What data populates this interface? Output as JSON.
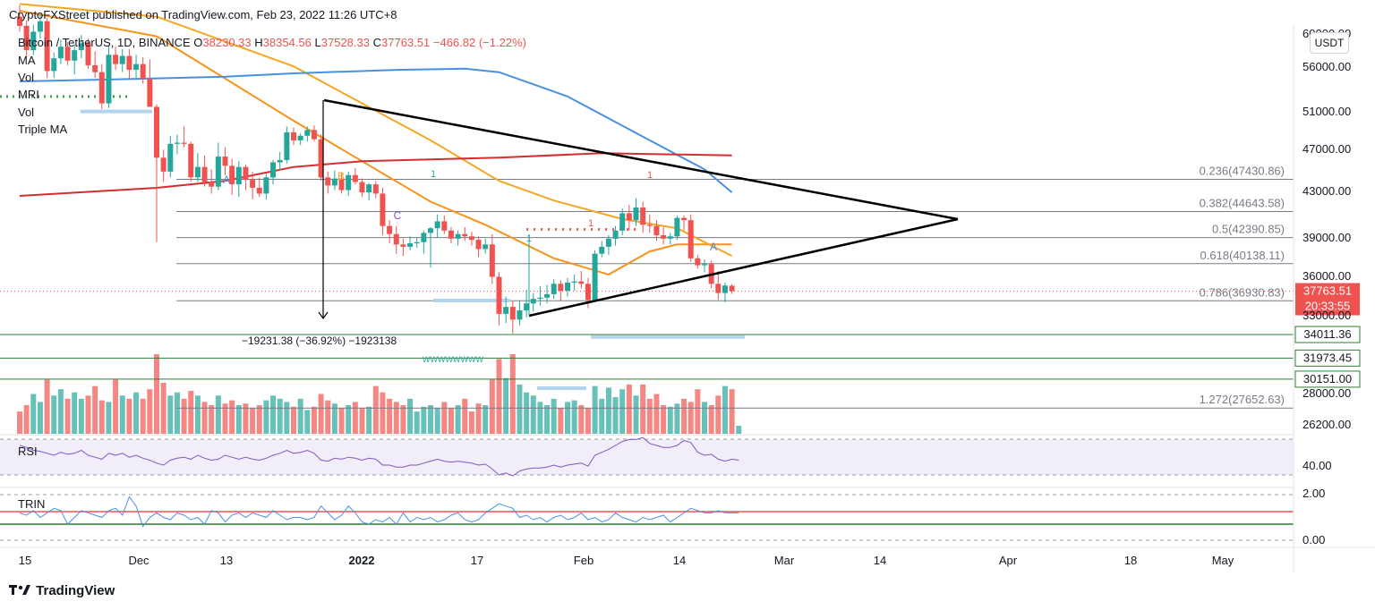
{
  "header": {
    "publisher": "CryptoFXStreet published on TradingView.com, Feb 23, 2022 11:26 UTC+8"
  },
  "symbol_line": {
    "symbol": "Bitcoin / TetherUS, 1D, BINANCE",
    "o_label": "O",
    "o_value": "38230.33",
    "h_label": "H",
    "h_value": "38354.56",
    "l_label": "L",
    "l_value": "37528.33",
    "c_label": "C",
    "c_value": "37763.51",
    "change": "−466.82 (−1.22%)"
  },
  "indicator_legend": [
    "MA",
    "Vol",
    "MRI",
    "Vol",
    "Triple MA"
  ],
  "quote_badge": "USDT",
  "price_axis": {
    "labels": [
      "60000.00",
      "56000.00",
      "51000.00",
      "47000.00",
      "43000.00",
      "39000.00",
      "36000.00",
      "33000.00",
      "28000.00",
      "26200.00"
    ]
  },
  "price_tags": {
    "last_price": "37763.51",
    "countdown": "20:33:55",
    "green_levels": [
      "34011.36",
      "31973.45",
      "30151.00"
    ]
  },
  "fib_levels": [
    {
      "label": "0.236(47430.86)"
    },
    {
      "label": "0.382(44643.58)"
    },
    {
      "label": "0.5(42390.85)"
    },
    {
      "label": "0.618(40138.11)"
    },
    {
      "label": "0.786(36930.83)"
    },
    {
      "label": "1.272(27652.63)"
    }
  ],
  "measure_label": "−19231.38 (−36.92%) −1923138",
  "wave_marks": [
    "A",
    "B",
    "C",
    "A"
  ],
  "td_marks": [
    "1",
    "1",
    "1",
    "1"
  ],
  "pattern_mark": "WWWWWWWW",
  "rsi": {
    "label": "RSI",
    "value_label": "40.00"
  },
  "trin": {
    "label": "TRIN",
    "top_label": "2.00",
    "bottom_label": "0.00"
  },
  "time_axis": [
    "15",
    "Dec",
    "13",
    "2022",
    "17",
    "Feb",
    "14",
    "Mar",
    "14",
    "Apr",
    "18",
    "May"
  ],
  "footer": {
    "brand": "TradingView"
  },
  "colors": {
    "up": "#26a69a",
    "down": "#ef5350",
    "ma_orange": "#f7931a",
    "ma_yellow": "#f5a623",
    "ma_blue": "#4a90e2",
    "ma_red": "#d32f2f",
    "rsi_line": "#7e57c2",
    "support_green": "#2e7d32"
  },
  "chart_data": {
    "type": "candlestick",
    "title": "Bitcoin / TetherUS, 1D, BINANCE",
    "candles": [
      {
        "o": 61500,
        "h": 62500,
        "l": 60200,
        "c": 60700
      },
      {
        "o": 60700,
        "h": 61200,
        "l": 58000,
        "c": 58600
      },
      {
        "o": 58600,
        "h": 60800,
        "l": 58200,
        "c": 60200
      },
      {
        "o": 60200,
        "h": 61700,
        "l": 59600,
        "c": 61100
      },
      {
        "o": 61100,
        "h": 61400,
        "l": 56200,
        "c": 56800
      },
      {
        "o": 56800,
        "h": 58400,
        "l": 56200,
        "c": 57900
      },
      {
        "o": 57900,
        "h": 59500,
        "l": 57400,
        "c": 58900
      },
      {
        "o": 58900,
        "h": 59300,
        "l": 57300,
        "c": 57700
      },
      {
        "o": 57700,
        "h": 59100,
        "l": 56500,
        "c": 58600
      },
      {
        "o": 58600,
        "h": 59900,
        "l": 57900,
        "c": 59200
      },
      {
        "o": 59200,
        "h": 59600,
        "l": 57000,
        "c": 57300
      },
      {
        "o": 57300,
        "h": 58500,
        "l": 56200,
        "c": 56700
      },
      {
        "o": 56700,
        "h": 57400,
        "l": 53500,
        "c": 54000
      },
      {
        "o": 54000,
        "h": 59000,
        "l": 53600,
        "c": 58200
      },
      {
        "o": 58200,
        "h": 58900,
        "l": 56900,
        "c": 57400
      },
      {
        "o": 57400,
        "h": 58700,
        "l": 56700,
        "c": 58100
      },
      {
        "o": 58100,
        "h": 58700,
        "l": 56100,
        "c": 56900
      },
      {
        "o": 56900,
        "h": 58200,
        "l": 56200,
        "c": 57400
      },
      {
        "o": 57400,
        "h": 58000,
        "l": 55700,
        "c": 56100
      },
      {
        "o": 56100,
        "h": 57800,
        "l": 53900,
        "c": 53700
      },
      {
        "o": 53700,
        "h": 53900,
        "l": 42000,
        "c": 49300
      },
      {
        "o": 49300,
        "h": 50000,
        "l": 47200,
        "c": 48100
      },
      {
        "o": 48100,
        "h": 51200,
        "l": 47600,
        "c": 50500
      },
      {
        "o": 50500,
        "h": 51300,
        "l": 49600,
        "c": 50600
      },
      {
        "o": 50600,
        "h": 52000,
        "l": 50200,
        "c": 50500
      },
      {
        "o": 50500,
        "h": 50700,
        "l": 47200,
        "c": 47600
      },
      {
        "o": 47600,
        "h": 49700,
        "l": 47200,
        "c": 48500
      },
      {
        "o": 48500,
        "h": 49500,
        "l": 46800,
        "c": 47200
      },
      {
        "o": 47200,
        "h": 48300,
        "l": 46200,
        "c": 46800
      },
      {
        "o": 46800,
        "h": 50600,
        "l": 46500,
        "c": 49400
      },
      {
        "o": 49400,
        "h": 50200,
        "l": 47800,
        "c": 48600
      },
      {
        "o": 48600,
        "h": 49200,
        "l": 46100,
        "c": 47000
      },
      {
        "o": 47000,
        "h": 49000,
        "l": 45900,
        "c": 48500
      },
      {
        "o": 48500,
        "h": 48700,
        "l": 46500,
        "c": 47400
      },
      {
        "o": 47400,
        "h": 48100,
        "l": 45700,
        "c": 46700
      },
      {
        "o": 46700,
        "h": 47600,
        "l": 45900,
        "c": 46200
      },
      {
        "o": 46200,
        "h": 47900,
        "l": 45700,
        "c": 47600
      },
      {
        "o": 47600,
        "h": 49100,
        "l": 47000,
        "c": 48900
      },
      {
        "o": 48900,
        "h": 49800,
        "l": 48200,
        "c": 49100
      },
      {
        "o": 49100,
        "h": 52000,
        "l": 48800,
        "c": 51500
      },
      {
        "o": 51500,
        "h": 51900,
        "l": 50400,
        "c": 50800
      },
      {
        "o": 50800,
        "h": 51400,
        "l": 50400,
        "c": 51200
      },
      {
        "o": 51200,
        "h": 52000,
        "l": 50700,
        "c": 51700
      },
      {
        "o": 51700,
        "h": 52100,
        "l": 50700,
        "c": 50900
      },
      {
        "o": 50900,
        "h": 51300,
        "l": 47300,
        "c": 47600
      },
      {
        "o": 47600,
        "h": 48100,
        "l": 46200,
        "c": 46900
      },
      {
        "o": 46900,
        "h": 48200,
        "l": 46500,
        "c": 47500
      },
      {
        "o": 47500,
        "h": 48000,
        "l": 46200,
        "c": 46500
      },
      {
        "o": 46500,
        "h": 48100,
        "l": 46000,
        "c": 47800
      },
      {
        "o": 47800,
        "h": 48400,
        "l": 47000,
        "c": 47200
      },
      {
        "o": 47200,
        "h": 47500,
        "l": 45900,
        "c": 46300
      },
      {
        "o": 46300,
        "h": 47100,
        "l": 45600,
        "c": 47000
      },
      {
        "o": 47000,
        "h": 47300,
        "l": 45800,
        "c": 46200
      },
      {
        "o": 46200,
        "h": 46700,
        "l": 42600,
        "c": 43400
      },
      {
        "o": 43400,
        "h": 43900,
        "l": 41900,
        "c": 42700
      },
      {
        "o": 42700,
        "h": 43400,
        "l": 41000,
        "c": 41800
      },
      {
        "o": 41800,
        "h": 42300,
        "l": 40800,
        "c": 41600
      },
      {
        "o": 41600,
        "h": 42500,
        "l": 41300,
        "c": 41900
      },
      {
        "o": 41900,
        "h": 42400,
        "l": 41500,
        "c": 42000
      },
      {
        "o": 42000,
        "h": 43000,
        "l": 41000,
        "c": 42800
      },
      {
        "o": 42800,
        "h": 43300,
        "l": 39800,
        "c": 43200
      },
      {
        "o": 43200,
        "h": 44400,
        "l": 42400,
        "c": 43800
      },
      {
        "o": 43800,
        "h": 44300,
        "l": 42700,
        "c": 43000
      },
      {
        "o": 43000,
        "h": 43300,
        "l": 41900,
        "c": 42300
      },
      {
        "o": 42300,
        "h": 43000,
        "l": 41700,
        "c": 42700
      },
      {
        "o": 42700,
        "h": 43300,
        "l": 42100,
        "c": 42500
      },
      {
        "o": 42500,
        "h": 42900,
        "l": 41700,
        "c": 42200
      },
      {
        "o": 42200,
        "h": 42500,
        "l": 40700,
        "c": 41400
      },
      {
        "o": 41400,
        "h": 42300,
        "l": 41000,
        "c": 41800
      },
      {
        "o": 41800,
        "h": 42700,
        "l": 38400,
        "c": 39000
      },
      {
        "o": 39000,
        "h": 39400,
        "l": 34800,
        "c": 35800
      },
      {
        "o": 35800,
        "h": 37300,
        "l": 35000,
        "c": 36400
      },
      {
        "o": 36400,
        "h": 36900,
        "l": 34100,
        "c": 35300
      },
      {
        "o": 35300,
        "h": 36900,
        "l": 34800,
        "c": 36100
      },
      {
        "o": 36100,
        "h": 37900,
        "l": 35500,
        "c": 36700
      },
      {
        "o": 36700,
        "h": 37600,
        "l": 36000,
        "c": 37100
      },
      {
        "o": 37100,
        "h": 38200,
        "l": 36500,
        "c": 37200
      },
      {
        "o": 37200,
        "h": 38300,
        "l": 36700,
        "c": 37500
      },
      {
        "o": 37500,
        "h": 38800,
        "l": 37100,
        "c": 38400
      },
      {
        "o": 38400,
        "h": 38700,
        "l": 36900,
        "c": 37800
      },
      {
        "o": 37800,
        "h": 38900,
        "l": 37300,
        "c": 38500
      },
      {
        "o": 38500,
        "h": 39200,
        "l": 37800,
        "c": 38600
      },
      {
        "o": 38600,
        "h": 39500,
        "l": 38000,
        "c": 38400
      },
      {
        "o": 38400,
        "h": 38900,
        "l": 36300,
        "c": 37000
      },
      {
        "o": 37000,
        "h": 41300,
        "l": 36800,
        "c": 41000
      },
      {
        "o": 41000,
        "h": 42100,
        "l": 40700,
        "c": 41600
      },
      {
        "o": 41600,
        "h": 42600,
        "l": 40900,
        "c": 42300
      },
      {
        "o": 42300,
        "h": 43400,
        "l": 41700,
        "c": 43000
      },
      {
        "o": 43000,
        "h": 44900,
        "l": 42600,
        "c": 44500
      },
      {
        "o": 44500,
        "h": 45200,
        "l": 43000,
        "c": 43900
      },
      {
        "o": 43900,
        "h": 45800,
        "l": 43400,
        "c": 45000
      },
      {
        "o": 45000,
        "h": 45500,
        "l": 42800,
        "c": 43500
      },
      {
        "o": 43500,
        "h": 44400,
        "l": 42800,
        "c": 43400
      },
      {
        "o": 43400,
        "h": 43900,
        "l": 42100,
        "c": 42600
      },
      {
        "o": 42600,
        "h": 43300,
        "l": 41800,
        "c": 42300
      },
      {
        "o": 42300,
        "h": 42800,
        "l": 41800,
        "c": 42500
      },
      {
        "o": 42500,
        "h": 44300,
        "l": 42200,
        "c": 44100
      },
      {
        "o": 44100,
        "h": 44300,
        "l": 43000,
        "c": 43900
      },
      {
        "o": 43900,
        "h": 44400,
        "l": 40300,
        "c": 40600
      },
      {
        "o": 40600,
        "h": 40900,
        "l": 39700,
        "c": 40000
      },
      {
        "o": 40000,
        "h": 40500,
        "l": 39400,
        "c": 40100
      },
      {
        "o": 40100,
        "h": 40400,
        "l": 38000,
        "c": 38400
      },
      {
        "o": 38400,
        "h": 39500,
        "l": 37000,
        "c": 37600
      },
      {
        "o": 37600,
        "h": 38500,
        "l": 36800,
        "c": 38250
      },
      {
        "o": 38230.33,
        "h": 38354.56,
        "l": 37528.33,
        "c": 37763.51
      }
    ],
    "volume": [
      14,
      18,
      25,
      20,
      34,
      24,
      28,
      22,
      26,
      22,
      24,
      30,
      21,
      20,
      34,
      24,
      22,
      26,
      22,
      28,
      50,
      32,
      24,
      26,
      22,
      27,
      24,
      20,
      18,
      24,
      19,
      21,
      18,
      19,
      16,
      18,
      21,
      24,
      22,
      20,
      17,
      22,
      15,
      17,
      25,
      21,
      19,
      16,
      18,
      20,
      16,
      17,
      30,
      26,
      22,
      20,
      18,
      22,
      14,
      17,
      18,
      16,
      20,
      16,
      18,
      22,
      14,
      19,
      18,
      34,
      47,
      35,
      50,
      31,
      26,
      24,
      20,
      18,
      22,
      16,
      20,
      21,
      18,
      16,
      30,
      22,
      29,
      23,
      28,
      31,
      24,
      31,
      22,
      25,
      18,
      17,
      19,
      22,
      20,
      28,
      20,
      18,
      24,
      30,
      28,
      5
    ],
    "moving_averages": [
      {
        "color": "#f7931a",
        "values": [
          [
            0,
            62000
          ],
          [
            20,
            59800
          ],
          [
            40,
            52500
          ],
          [
            60,
            45500
          ],
          [
            68,
            43500
          ],
          [
            78,
            40600
          ],
          [
            86,
            39200
          ],
          [
            92,
            41200
          ],
          [
            96,
            41800
          ],
          [
            100,
            41800
          ],
          [
            104,
            41800
          ]
        ]
      },
      {
        "color": "#f5a623",
        "values": [
          [
            0,
            62600
          ],
          [
            20,
            61500
          ],
          [
            40,
            57200
          ],
          [
            60,
            50800
          ],
          [
            70,
            47300
          ],
          [
            78,
            45600
          ],
          [
            88,
            44000
          ],
          [
            96,
            43200
          ],
          [
            104,
            40800
          ]
        ]
      },
      {
        "color": "#4a90e2",
        "values": [
          [
            0,
            55900
          ],
          [
            16,
            56100
          ],
          [
            30,
            56300
          ],
          [
            40,
            56600
          ],
          [
            55,
            56900
          ],
          [
            65,
            57000
          ],
          [
            70,
            56700
          ],
          [
            80,
            54600
          ],
          [
            92,
            50800
          ],
          [
            100,
            48300
          ],
          [
            104,
            46300
          ]
        ]
      },
      {
        "color": "#d32f2f",
        "values": [
          [
            0,
            46000
          ],
          [
            20,
            46700
          ],
          [
            30,
            47300
          ],
          [
            40,
            48500
          ],
          [
            50,
            49000
          ],
          [
            70,
            49300
          ],
          [
            85,
            49700
          ],
          [
            104,
            49500
          ]
        ]
      }
    ],
    "fibonacci": [
      47430.86,
      44643.58,
      42390.85,
      40138.11,
      36930.83,
      27652.63
    ],
    "support_levels": [
      34011.36,
      31973.45,
      30151.0
    ],
    "rsi_range": [
      0,
      100
    ],
    "trin_range": [
      0,
      2
    ]
  }
}
